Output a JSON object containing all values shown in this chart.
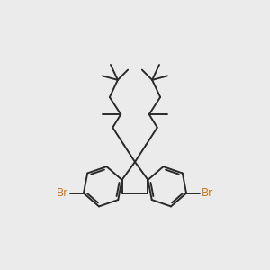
{
  "background_color": "#ebebeb",
  "line_color": "#2a2a2a",
  "br_color": "#cc7722",
  "line_width": 1.4,
  "figsize": [
    3.0,
    3.0
  ],
  "dpi": 100
}
